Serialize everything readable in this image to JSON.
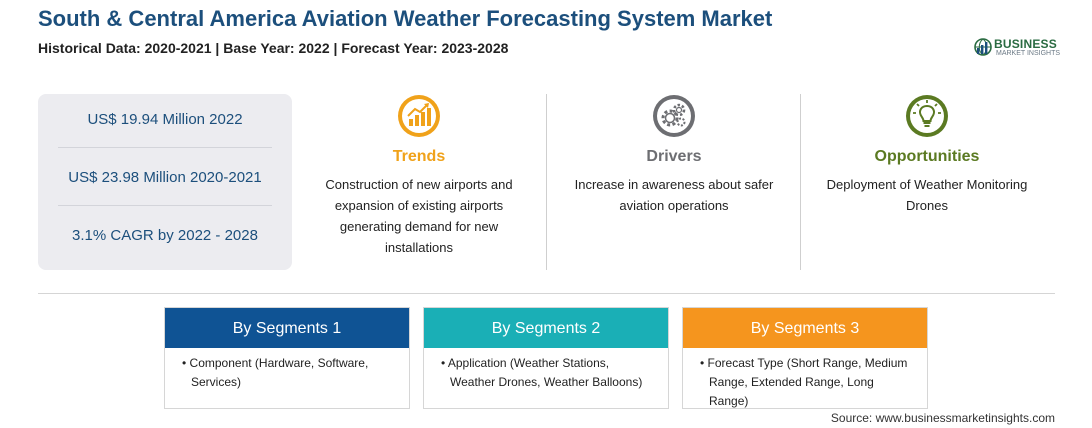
{
  "header": {
    "title": "South & Central America Aviation Weather Forecasting System Market",
    "subtitle": "Historical Data: 2020-2021 | Base Year: 2022 | Forecast Year: 2023-2028"
  },
  "logo": {
    "brand": "BUSINESS",
    "tagline": "MARKET INSIGHTS",
    "colors": {
      "green": "#2a6b41",
      "blue": "#1c4f7c"
    }
  },
  "stats": [
    {
      "text": "US$ 19.94 Million 2022"
    },
    {
      "text": "US$ 23.98 Million 2020-2021"
    },
    {
      "text": "3.1% CAGR by 2022 - 2028"
    }
  ],
  "factors": {
    "trends": {
      "heading": "Trends",
      "icon": "trend-chart-icon",
      "color": "#f0a21a",
      "description": "Construction of new airports and expansion of existing airports generating demand for new installations"
    },
    "drivers": {
      "heading": "Drivers",
      "icon": "gears-icon",
      "color": "#6d6e72",
      "description": "Increase in awareness about safer aviation operations"
    },
    "opportunities": {
      "heading": "Opportunities",
      "icon": "lightbulb-icon",
      "color": "#5b7a22",
      "description": "Deployment of Weather Monitoring Drones"
    }
  },
  "segments": [
    {
      "title": "By Segments 1",
      "color": "#0f5394",
      "items": [
        "Component (Hardware, Software, Services)"
      ]
    },
    {
      "title": "By Segments 2",
      "color": "#1aafb6",
      "items": [
        "Application (Weather Stations, Weather Drones, Weather Balloons)"
      ]
    },
    {
      "title": "By Segments 3",
      "color": "#f5951e",
      "items": [
        "Forecast Type (Short Range, Medium Range, Extended Range, Long Range)"
      ]
    }
  ],
  "source": "Source: www.businessmarketinsights.com"
}
